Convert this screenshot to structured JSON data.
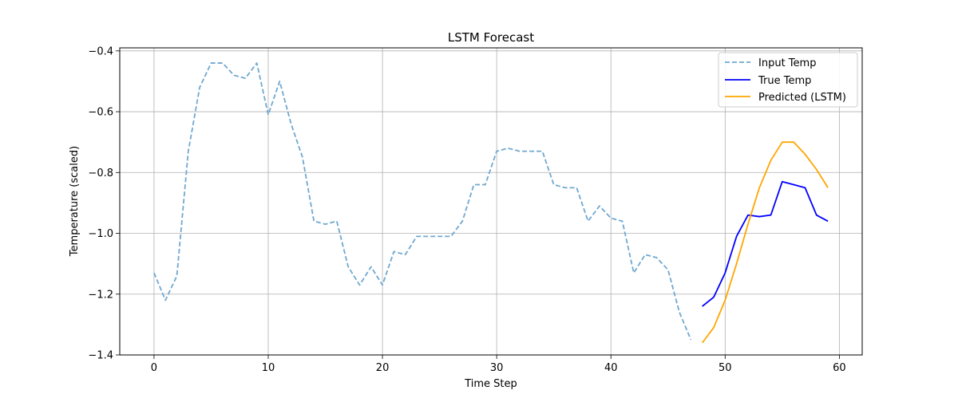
{
  "chart_data": {
    "type": "line",
    "title": "LSTM Forecast",
    "xlabel": "Time Step",
    "ylabel": "Temperature (scaled)",
    "xlim": [
      -3,
      62
    ],
    "ylim": [
      -1.4,
      -0.39
    ],
    "xticks": [
      0,
      10,
      20,
      30,
      40,
      50,
      60
    ],
    "yticks": [
      -1.4,
      -1.2,
      -1.0,
      -0.8,
      -0.6,
      -0.4
    ],
    "xtick_labels": [
      "0",
      "10",
      "20",
      "30",
      "40",
      "50",
      "60"
    ],
    "ytick_labels": [
      "−1.4",
      "−1.2",
      "−1.0",
      "−0.8",
      "−0.6",
      "−0.4"
    ],
    "grid": true,
    "legend_position": "top-right",
    "series": [
      {
        "name": "Input Temp",
        "color": "#6fa8d0",
        "dash": "dashed",
        "x": [
          0,
          1,
          2,
          3,
          4,
          5,
          6,
          7,
          8,
          9,
          10,
          11,
          12,
          13,
          14,
          15,
          16,
          17,
          18,
          19,
          20,
          21,
          22,
          23,
          24,
          25,
          26,
          27,
          28,
          29,
          30,
          31,
          32,
          33,
          34,
          35,
          36,
          37,
          38,
          39,
          40,
          41,
          42,
          43,
          44,
          45,
          46,
          47
        ],
        "values": [
          -1.13,
          -1.22,
          -1.14,
          -0.73,
          -0.52,
          -0.44,
          -0.44,
          -0.48,
          -0.49,
          -0.44,
          -0.61,
          -0.5,
          -0.64,
          -0.75,
          -0.96,
          -0.97,
          -0.96,
          -1.11,
          -1.17,
          -1.11,
          -1.17,
          -1.06,
          -1.07,
          -1.01,
          -1.01,
          -1.01,
          -1.01,
          -0.96,
          -0.84,
          -0.84,
          -0.73,
          -0.72,
          -0.73,
          -0.73,
          -0.73,
          -0.84,
          -0.85,
          -0.85,
          -0.96,
          -0.91,
          -0.95,
          -0.96,
          -1.13,
          -1.07,
          -1.08,
          -1.12,
          -1.26,
          -1.35
        ]
      },
      {
        "name": "True Temp",
        "color": "#0000ff",
        "dash": "solid",
        "x": [
          48,
          49,
          50,
          51,
          52,
          53,
          54,
          55,
          56,
          57,
          58,
          59
        ],
        "values": [
          -1.24,
          -1.21,
          -1.13,
          -1.01,
          -0.94,
          -0.945,
          -0.94,
          -0.83,
          -0.84,
          -0.85,
          -0.94,
          -0.96
        ]
      },
      {
        "name": "Predicted (LSTM)",
        "color": "#ffa500",
        "dash": "solid",
        "x": [
          48,
          49,
          50,
          51,
          52,
          53,
          54,
          55,
          56,
          57,
          58,
          59
        ],
        "values": [
          -1.36,
          -1.31,
          -1.22,
          -1.1,
          -0.97,
          -0.85,
          -0.76,
          -0.7,
          -0.7,
          -0.74,
          -0.79,
          -0.85
        ]
      }
    ]
  }
}
